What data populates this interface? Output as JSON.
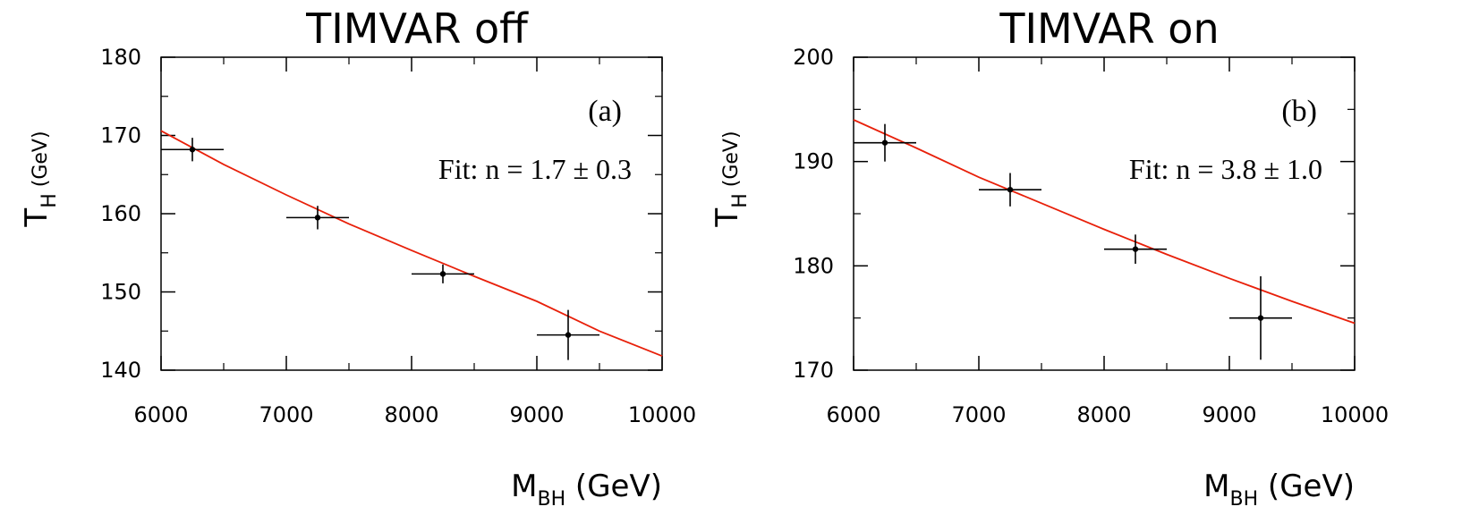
{
  "chart_data": [
    {
      "type": "scatter",
      "title": "TIMVAR off",
      "panel_label": "(a)",
      "annotation": "Fit: n = 1.7 ± 0.3",
      "xlabel": {
        "main": "M",
        "sub": "BH",
        "unit": " (GeV)"
      },
      "ylabel": {
        "main": "T",
        "sub": "H",
        "unit": " (GeV)"
      },
      "xlim": [
        6000,
        10000
      ],
      "ylim": [
        140,
        180
      ],
      "xticks": [
        6000,
        7000,
        8000,
        9000,
        10000
      ],
      "yticks": [
        140,
        150,
        160,
        170,
        180
      ],
      "series": [
        {
          "x": [
            6250,
            7250,
            8250,
            9250
          ],
          "y": [
            168.2,
            159.5,
            152.3,
            144.5
          ],
          "xerr": [
            250,
            250,
            250,
            250
          ],
          "yerr": [
            1.5,
            1.5,
            1.2,
            3.2
          ]
        }
      ],
      "fit_curve": {
        "x": [
          6000,
          6500,
          7000,
          7500,
          8000,
          8500,
          9000,
          9500,
          10000
        ],
        "y": [
          170.6,
          166.3,
          162.4,
          158.7,
          155.3,
          152.0,
          148.8,
          145.0,
          141.8
        ]
      },
      "fit_color": "#e8200a"
    },
    {
      "type": "scatter",
      "title": "TIMVAR on",
      "panel_label": "(b)",
      "annotation": "Fit: n = 3.8 ± 1.0",
      "xlabel": {
        "main": "M",
        "sub": "BH",
        "unit": " (GeV)"
      },
      "ylabel": {
        "main": "T",
        "sub": "H",
        "unit": " (GeV)"
      },
      "xlim": [
        6000,
        10000
      ],
      "ylim": [
        170,
        200
      ],
      "xticks": [
        6000,
        7000,
        8000,
        9000,
        10000
      ],
      "yticks": [
        170,
        180,
        190,
        200
      ],
      "series": [
        {
          "x": [
            6250,
            7250,
            8250,
            9250
          ],
          "y": [
            191.8,
            187.3,
            181.6,
            175.0
          ],
          "xerr": [
            250,
            250,
            250,
            250
          ],
          "yerr": [
            1.8,
            1.6,
            1.4,
            4.0
          ]
        }
      ],
      "fit_curve": {
        "x": [
          6000,
          6500,
          7000,
          7500,
          8000,
          8500,
          9000,
          9500,
          10000
        ],
        "y": [
          194.0,
          191.3,
          188.5,
          186.0,
          183.5,
          181.1,
          178.8,
          176.6,
          174.5
        ]
      },
      "fit_color": "#e8200a"
    }
  ]
}
